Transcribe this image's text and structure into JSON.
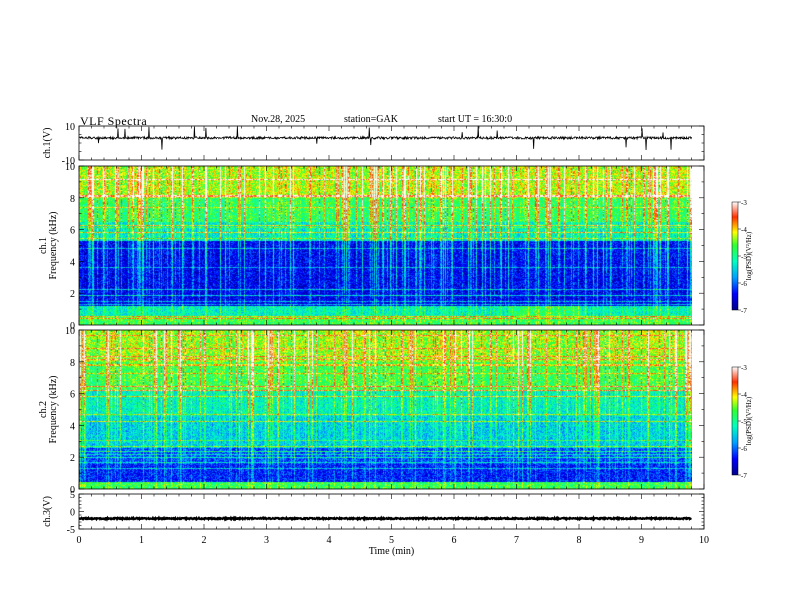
{
  "header": {
    "title": "VLF  Spectra",
    "date": "Nov.28, 2025",
    "station": "station=GAK",
    "start_ut": "start  UT  =   16:30:0"
  },
  "chart_data": [
    {
      "type": "line",
      "name": "ch1-waveform",
      "ylabel": "ch.1(V)",
      "ylim": [
        -10,
        10
      ],
      "yticks": [
        "10",
        "-10"
      ],
      "x_range_min": [
        0,
        9.8
      ],
      "baseline_v": 3.0,
      "color": "#000000"
    },
    {
      "type": "heatmap",
      "name": "ch1-spectrogram",
      "ylabel_top": "ch.1",
      "ylabel": "Frequency  (kHz)",
      "ylim": [
        0,
        10
      ],
      "yticks": [
        "0",
        "2",
        "4",
        "6",
        "8",
        "10"
      ],
      "x_range_min": [
        0,
        9.8
      ],
      "colorbar": {
        "label": "log(PSD)(V²/Hz)",
        "range": [
          -7,
          -3
        ],
        "ticks": [
          "-3",
          "-4",
          "-5",
          "-6",
          "-7"
        ]
      }
    },
    {
      "type": "heatmap",
      "name": "ch2-spectrogram",
      "ylabel_top": "ch.2",
      "ylabel": "Frequency  (kHz)",
      "ylim": [
        0,
        10
      ],
      "yticks": [
        "0",
        "2",
        "4",
        "6",
        "8",
        "10"
      ],
      "x_range_min": [
        0,
        9.8
      ],
      "colorbar": {
        "label": "log(PSD)(V²/Hz)",
        "range": [
          -7,
          -3
        ],
        "ticks": [
          "-3",
          "-4",
          "-5",
          "-6",
          "-7"
        ]
      }
    },
    {
      "type": "line",
      "name": "ch3-waveform",
      "ylabel": "ch.3(V)",
      "ylim": [
        -5,
        5
      ],
      "yticks": [
        "5",
        "0",
        "-5"
      ],
      "x_range_min": [
        0,
        9.8
      ],
      "baseline_v": -2.0,
      "color": "#000000"
    }
  ],
  "x_axis": {
    "label": "Time  (min)",
    "range": [
      0,
      10
    ],
    "ticks": [
      "0",
      "1",
      "2",
      "3",
      "4",
      "5",
      "6",
      "7",
      "8",
      "9",
      "10"
    ]
  }
}
